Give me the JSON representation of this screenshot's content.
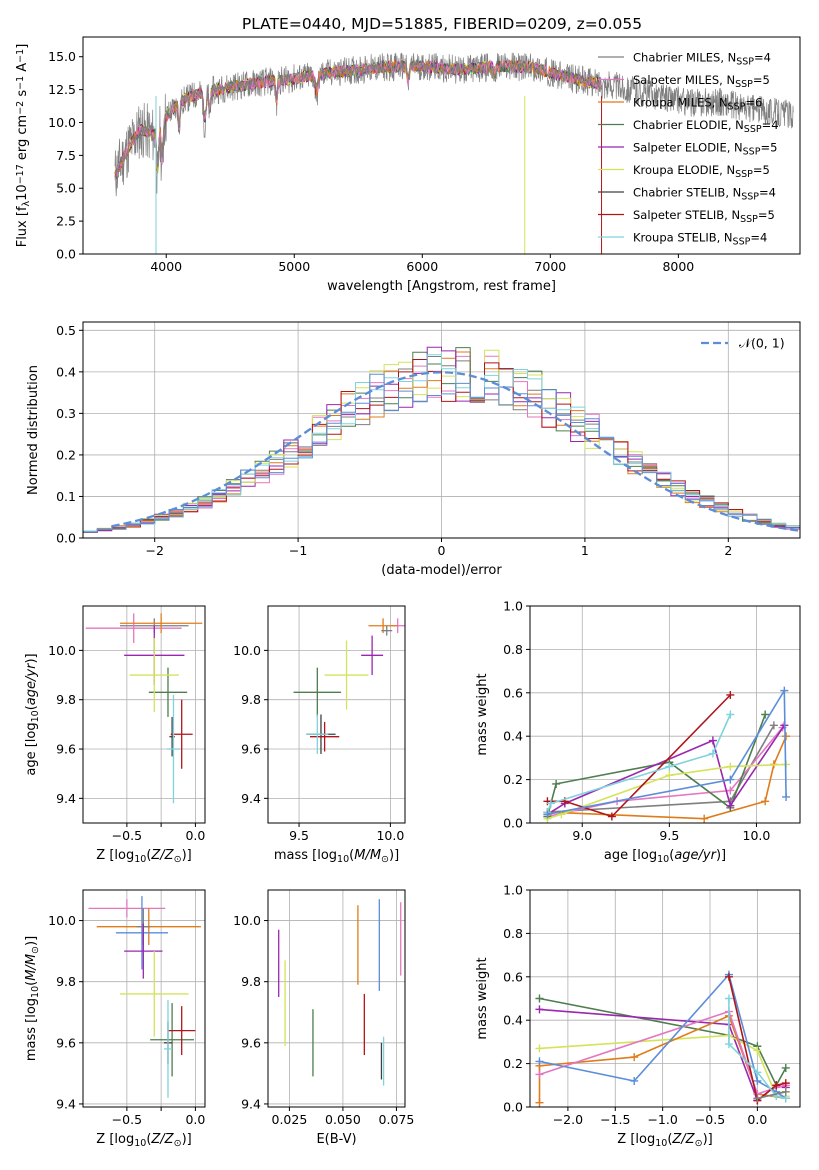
{
  "figure_title": "PLATE=0440, MJD=51885, FIBERID=0209, z=0.055",
  "colors": {
    "Chabrier MILES": "#7f7f7f",
    "Salpeter MILES": "#e377c2",
    "Kroupa MILES": "#e07b1a",
    "Chabrier ELODIE": "#4e7d4e",
    "Salpeter ELODIE": "#9b27b0",
    "Kroupa ELODIE": "#d4e35a",
    "Chabrier STELIB": "#404040",
    "Salpeter STELIB": "#b0151b",
    "Kroupa STELIB": "#7fd3dd",
    "blue": "#5b8dd9"
  },
  "chart_data": [
    {
      "type": "line",
      "panel": "spectrum",
      "xlabel": "wavelength [Angstrom, rest frame]",
      "ylabel_parts": [
        "Flux [f",
        "λ",
        "10",
        "−17",
        " erg cm",
        "−2",
        " s",
        "−1",
        " A",
        "−1",
        "]"
      ],
      "xlim": [
        3350,
        8950
      ],
      "ylim": [
        0,
        16.5
      ],
      "xticks": [
        4000,
        5000,
        6000,
        7000,
        8000
      ],
      "yticks": [
        0.0,
        2.5,
        5.0,
        7.5,
        10.0,
        12.5,
        15.0
      ],
      "envelope_x": [
        3600,
        3700,
        3800,
        3900,
        4000,
        4100,
        4200,
        4300,
        4500,
        4700,
        4900,
        5100,
        5300,
        5500,
        5700,
        5900,
        6100,
        6300,
        6500,
        6700,
        6900,
        7100,
        7300,
        7500,
        7700,
        7900,
        8100,
        8300,
        8500,
        8700,
        8900
      ],
      "envelope_y": [
        6.0,
        8.0,
        9.5,
        9.0,
        10.5,
        11.5,
        12.0,
        12.3,
        12.7,
        13.0,
        13.2,
        13.5,
        13.8,
        14.0,
        14.2,
        14.3,
        14.2,
        14.0,
        14.2,
        14.3,
        14.1,
        13.5,
        13.1,
        12.8,
        12.3,
        11.9,
        11.5,
        11.6,
        11.1,
        10.9,
        10.6
      ],
      "model_end_x": 7400,
      "series": [
        {
          "name": "Chabrier MILES",
          "nssp": "4"
        },
        {
          "name": "Salpeter MILES",
          "nssp": "5"
        },
        {
          "name": "Kroupa MILES",
          "nssp": "6"
        },
        {
          "name": "Chabrier ELODIE",
          "nssp": "4"
        },
        {
          "name": "Salpeter ELODIE",
          "nssp": "5"
        },
        {
          "name": "Kroupa ELODIE",
          "nssp": "5"
        },
        {
          "name": "Chabrier STELIB",
          "nssp": "4"
        },
        {
          "name": "Salpeter STELIB",
          "nssp": "5"
        },
        {
          "name": "Kroupa STELIB",
          "nssp": "4"
        }
      ]
    },
    {
      "type": "histogram",
      "panel": "residuals",
      "xlabel": "(data-model)/error",
      "ylabel": "Normed distribution",
      "xlim": [
        -2.5,
        2.5
      ],
      "ylim": [
        0,
        0.52
      ],
      "xticks": [
        -2,
        -1,
        0,
        1,
        2
      ],
      "yticks": [
        0.0,
        0.1,
        0.2,
        0.3,
        0.4,
        0.5
      ],
      "bin_start": -2.5,
      "bin_width": 0.1,
      "reference_curve": {
        "name": "N(0, 1)",
        "style": "dashed",
        "mean": 0,
        "sigma": 1
      }
    },
    {
      "type": "errorbar",
      "panel": "age-vs-Z",
      "xlabel": "Z [log10(Z/Z⊙)]",
      "ylabel": "age [log10(age/yr)]",
      "xlim": [
        -0.82,
        0.07
      ],
      "ylim": [
        9.3,
        10.18
      ],
      "xticks": [
        -0.5,
        -0.25,
        0.0
      ],
      "ytick_values": [
        9.4,
        9.6,
        9.8,
        10.0
      ],
      "xtick_labels": [
        "−0.5",
        "",
        "0.0"
      ],
      "points": [
        {
          "series": "Chabrier MILES",
          "x": -0.3,
          "xerr": 0.25,
          "y": 10.1,
          "yerr": 0.03
        },
        {
          "series": "Salpeter MILES",
          "x": -0.45,
          "xerr": 0.35,
          "y": 10.09,
          "yerr": 0.06
        },
        {
          "series": "Kroupa MILES",
          "x": -0.25,
          "xerr": 0.3,
          "y": 10.11,
          "yerr": 0.04
        },
        {
          "series": "Chabrier ELODIE",
          "x": -0.2,
          "xerr": 0.14,
          "y": 9.83,
          "yerr": 0.1
        },
        {
          "series": "Salpeter ELODIE",
          "x": -0.3,
          "xerr": 0.22,
          "y": 9.98,
          "yerr": 0.12
        },
        {
          "series": "Kroupa ELODIE",
          "x": -0.3,
          "xerr": 0.18,
          "y": 9.9,
          "yerr": 0.15
        },
        {
          "series": "Chabrier STELIB",
          "x": -0.17,
          "xerr": 0.02,
          "y": 9.65,
          "yerr": 0.08
        },
        {
          "series": "Salpeter STELIB",
          "x": -0.1,
          "xerr": 0.08,
          "y": 9.66,
          "yerr": 0.14
        },
        {
          "series": "Kroupa STELIB",
          "x": -0.16,
          "xerr": 0.05,
          "y": 9.6,
          "yerr": 0.22
        }
      ]
    },
    {
      "type": "errorbar",
      "panel": "age-vs-mass",
      "xlabel": "mass [log10(M/M⊙)]",
      "xlim": [
        9.33,
        10.08
      ],
      "ylim": [
        9.3,
        10.18
      ],
      "xticks": [
        9.5,
        10.0
      ],
      "ytick_values": [
        9.4,
        9.6,
        9.8,
        10.0
      ],
      "points": [
        {
          "series": "Salpeter MILES",
          "x": 10.04,
          "xerr": 0.04,
          "y": 10.1,
          "yerr": 0.03
        },
        {
          "series": "Kroupa MILES",
          "x": 9.96,
          "xerr": 0.08,
          "y": 10.1,
          "yerr": 0.03
        },
        {
          "series": "Chabrier MILES",
          "x": 9.98,
          "xerr": 0.03,
          "y": 10.08,
          "yerr": 0.02
        },
        {
          "series": "Salpeter ELODIE",
          "x": 9.9,
          "xerr": 0.06,
          "y": 9.98,
          "yerr": 0.08
        },
        {
          "series": "Kroupa ELODIE",
          "x": 9.76,
          "xerr": 0.12,
          "y": 9.9,
          "yerr": 0.14
        },
        {
          "series": "Chabrier ELODIE",
          "x": 9.6,
          "xerr": 0.13,
          "y": 9.83,
          "yerr": 0.1
        },
        {
          "series": "Chabrier STELIB",
          "x": 9.62,
          "xerr": 0.08,
          "y": 9.66,
          "yerr": 0.08
        },
        {
          "series": "Salpeter STELIB",
          "x": 9.64,
          "xerr": 0.08,
          "y": 9.65,
          "yerr": 0.06
        },
        {
          "series": "Kroupa STELIB",
          "x": 9.6,
          "xerr": 0.06,
          "y": 9.66,
          "yerr": 0.08
        }
      ]
    },
    {
      "type": "line",
      "panel": "massweight-vs-age",
      "xlabel": "age [log10(age/yr)]",
      "ylabel": "mass weight",
      "xlim": [
        8.7,
        10.25
      ],
      "ylim": [
        0,
        1
      ],
      "xticks": [
        9.0,
        9.5,
        10.0
      ],
      "yticks": [
        0.0,
        0.2,
        0.4,
        0.6,
        0.8,
        1.0
      ],
      "series": [
        {
          "series": "Chabrier MILES",
          "x": [
            8.8,
            9.85,
            10.1
          ],
          "y": [
            0.05,
            0.1,
            0.45
          ]
        },
        {
          "series": "Salpeter MILES",
          "x": [
            8.8,
            9.2,
            9.85,
            10.15
          ],
          "y": [
            0.03,
            0.1,
            0.15,
            0.44
          ]
        },
        {
          "series": "Kroupa MILES",
          "x": [
            8.8,
            9.7,
            10.05,
            10.1,
            10.17
          ],
          "y": [
            0.05,
            0.02,
            0.1,
            0.27,
            0.4
          ]
        },
        {
          "series": "Chabrier ELODIE",
          "x": [
            8.8,
            8.85,
            9.5,
            9.85,
            10.05
          ],
          "y": [
            0.03,
            0.18,
            0.28,
            0.07,
            0.5
          ]
        },
        {
          "series": "Salpeter ELODIE",
          "x": [
            8.8,
            8.9,
            9.75,
            9.85,
            10.16
          ],
          "y": [
            0.04,
            0.09,
            0.38,
            0.08,
            0.45
          ]
        },
        {
          "series": "Kroupa ELODIE",
          "x": [
            8.8,
            8.88,
            9.5,
            9.85,
            10.17
          ],
          "y": [
            0.02,
            0.04,
            0.22,
            0.26,
            0.27
          ]
        },
        {
          "series": "Salpeter STELIB",
          "x": [
            8.8,
            8.9,
            9.17,
            9.85
          ],
          "y": [
            0.1,
            0.1,
            0.03,
            0.59
          ]
        },
        {
          "series": "Kroupa STELIB",
          "x": [
            8.8,
            8.82,
            9.5,
            9.75,
            9.85
          ],
          "y": [
            0.05,
            0.09,
            0.26,
            0.32,
            0.5
          ]
        },
        {
          "series": "blue",
          "x": [
            8.8,
            9.85,
            10.16,
            10.17
          ],
          "y": [
            0.04,
            0.2,
            0.61,
            0.12
          ]
        }
      ]
    },
    {
      "type": "errorbar",
      "panel": "mass-vs-Z",
      "xlabel": "Z [log10(Z/Z⊙)]",
      "ylabel": "mass [log10(M/M⊙)]",
      "xlim": [
        -0.82,
        0.07
      ],
      "ylim": [
        9.39,
        10.1
      ],
      "xticks": [
        -0.5,
        -0.25,
        0.0
      ],
      "ytick_values": [
        9.4,
        9.6,
        9.8,
        10.0
      ],
      "xtick_labels": [
        "−0.5",
        "",
        "0.0"
      ],
      "points": [
        {
          "series": "Salpeter MILES",
          "x": -0.5,
          "xerr": 0.28,
          "y": 10.04,
          "yerr": 0.03
        },
        {
          "series": "Kroupa MILES",
          "x": -0.34,
          "xerr": 0.38,
          "y": 9.98,
          "yerr": 0.06
        },
        {
          "series": "blue",
          "x": -0.39,
          "xerr": 0.19,
          "y": 9.96,
          "yerr": 0.12
        },
        {
          "series": "Chabrier MILES",
          "x": -0.38,
          "xerr": 0.05,
          "y": 9.98,
          "yerr": 0.06
        },
        {
          "series": "Salpeter ELODIE",
          "x": -0.38,
          "xerr": 0.14,
          "y": 9.9,
          "yerr": 0.09
        },
        {
          "series": "Kroupa ELODIE",
          "x": -0.3,
          "xerr": 0.25,
          "y": 9.76,
          "yerr": 0.14
        },
        {
          "series": "Chabrier ELODIE",
          "x": -0.17,
          "xerr": 0.16,
          "y": 9.61,
          "yerr": 0.12
        },
        {
          "series": "Chabrier STELIB",
          "x": -0.2,
          "xerr": 0.03,
          "y": 9.6,
          "yerr": 0.07
        },
        {
          "series": "Salpeter STELIB",
          "x": -0.1,
          "xerr": 0.1,
          "y": 9.64,
          "yerr": 0.08
        },
        {
          "series": "Kroupa STELIB",
          "x": -0.2,
          "xerr": 0.03,
          "y": 9.58,
          "yerr": 0.16
        }
      ]
    },
    {
      "type": "errorbar",
      "panel": "mass-vs-EBV",
      "xlabel": "E(B-V)",
      "xlim": [
        0.015,
        0.079
      ],
      "ylim": [
        9.39,
        10.1
      ],
      "xticks": [
        0.025,
        0.05,
        0.075
      ],
      "xtick_labels": [
        "0.025",
        "0.050",
        "0.075"
      ],
      "ytick_values": [
        9.4,
        9.6,
        9.8,
        10.0
      ],
      "points": [
        {
          "series": "Salpeter MILES",
          "x": 0.077,
          "y": 9.94,
          "yerr": 0.12
        },
        {
          "series": "blue",
          "x": 0.067,
          "y": 9.92,
          "yerr": 0.15
        },
        {
          "series": "Kroupa MILES",
          "x": 0.057,
          "y": 9.92,
          "yerr": 0.13
        },
        {
          "series": "Salpeter ELODIE",
          "x": 0.02,
          "y": 9.86,
          "yerr": 0.11
        },
        {
          "series": "Kroupa ELODIE",
          "x": 0.023,
          "y": 9.73,
          "yerr": 0.14
        },
        {
          "series": "Salpeter STELIB",
          "x": 0.06,
          "y": 9.66,
          "yerr": 0.1
        },
        {
          "series": "Chabrier ELODIE",
          "x": 0.036,
          "y": 9.6,
          "yerr": 0.11
        },
        {
          "series": "Kroupa STELIB",
          "x": 0.069,
          "y": 9.54,
          "yerr": 0.08
        },
        {
          "series": "Chabrier STELIB",
          "x": 0.068,
          "y": 9.54,
          "yerr": 0.06
        }
      ]
    },
    {
      "type": "line",
      "panel": "massweight-vs-Z",
      "xlabel": "Z [log10(Z/Z⊙)]",
      "ylabel": "mass weight",
      "xlim": [
        -2.4,
        0.45
      ],
      "ylim": [
        0,
        1
      ],
      "xticks": [
        -2.0,
        -1.5,
        -1.0,
        -0.5,
        0.0
      ],
      "xtick_labels": [
        "−2.0",
        "−1.5",
        "−1.0",
        "−0.5",
        "0.0"
      ],
      "yticks": [
        0.0,
        0.2,
        0.4,
        0.6,
        0.8,
        1.0
      ],
      "series": [
        {
          "series": "Chabrier ELODIE",
          "x": [
            -2.3,
            -0.3,
            0.0,
            0.2,
            0.3
          ],
          "y": [
            0.5,
            0.33,
            0.28,
            0.1,
            0.18
          ]
        },
        {
          "series": "Salpeter ELODIE",
          "x": [
            -2.3,
            -0.3,
            0.0,
            0.2,
            0.3
          ],
          "y": [
            0.45,
            0.38,
            0.03,
            0.1,
            0.09
          ]
        },
        {
          "series": "Kroupa ELODIE",
          "x": [
            -2.3,
            -0.3,
            0.0,
            0.2,
            0.3
          ],
          "y": [
            0.27,
            0.33,
            0.26,
            0.05,
            0.05
          ]
        },
        {
          "series": "Kroupa MILES",
          "x": [
            -2.3,
            -2.3,
            -1.3,
            -0.3,
            0.0,
            0.3
          ],
          "y": [
            0.02,
            0.19,
            0.23,
            0.42,
            0.06,
            0.04
          ]
        },
        {
          "series": "Salpeter MILES",
          "x": [
            -2.3,
            -0.3,
            0.0,
            0.2,
            0.3
          ],
          "y": [
            0.15,
            0.44,
            0.06,
            0.09,
            0.1
          ]
        },
        {
          "series": "blue",
          "x": [
            -2.3,
            -1.3,
            -0.3,
            0.0,
            0.2,
            0.3
          ],
          "y": [
            0.21,
            0.12,
            0.61,
            0.12,
            0.07,
            0.04
          ]
        },
        {
          "series": "Salpeter STELIB",
          "x": [
            -0.3,
            0.0,
            0.2,
            0.3
          ],
          "y": [
            0.6,
            0.03,
            0.1,
            0.11
          ]
        },
        {
          "series": "Kroupa STELIB",
          "x": [
            -0.3,
            -0.3,
            0.0,
            0.2,
            0.3
          ],
          "y": [
            0.5,
            0.29,
            0.16,
            0.05,
            0.04
          ]
        },
        {
          "series": "Chabrier MILES",
          "x": [
            0.0,
            0.3
          ],
          "y": [
            0.04,
            0.07
          ]
        }
      ]
    }
  ]
}
